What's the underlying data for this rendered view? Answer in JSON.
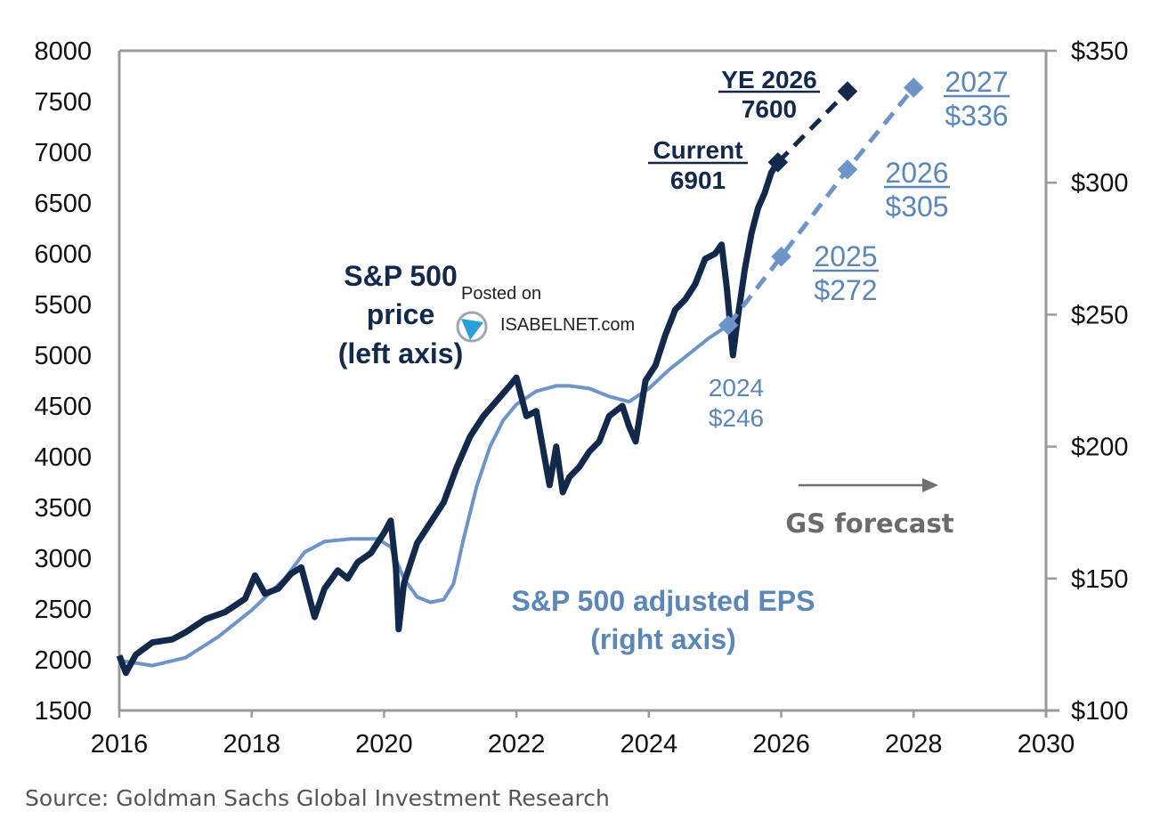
{
  "chart_data": {
    "type": "line",
    "title": "",
    "xlabel": "",
    "x_ticks": [
      "2016",
      "2018",
      "2020",
      "2022",
      "2024",
      "2026",
      "2028",
      "2030"
    ],
    "xlim": [
      2016,
      2030
    ],
    "left_axis": {
      "label": "S&P 500 price",
      "ylim": [
        1500,
        8000
      ],
      "ticks": [
        "8000",
        "7500",
        "7000",
        "6500",
        "6000",
        "5500",
        "5000",
        "4500",
        "4000",
        "3500",
        "3000",
        "2500",
        "2000",
        "1500"
      ]
    },
    "right_axis": {
      "label": "S&P 500 adjusted EPS",
      "ylim": [
        100,
        350
      ],
      "ticks": [
        "$350",
        "$300",
        "$250",
        "$200",
        "$150",
        "$100"
      ]
    },
    "grid": false,
    "series": [
      {
        "name": "S&P 500 price (left axis)",
        "axis": "left",
        "color": "#13294b",
        "x": [
          2016.0,
          2016.1,
          2016.25,
          2016.5,
          2016.8,
          2017.0,
          2017.3,
          2017.6,
          2017.9,
          2018.05,
          2018.2,
          2018.4,
          2018.6,
          2018.75,
          2018.95,
          2019.1,
          2019.3,
          2019.45,
          2019.6,
          2019.8,
          2020.0,
          2020.1,
          2020.18,
          2020.22,
          2020.3,
          2020.5,
          2020.7,
          2020.9,
          2021.1,
          2021.3,
          2021.5,
          2021.7,
          2021.9,
          2022.0,
          2022.15,
          2022.3,
          2022.45,
          2022.5,
          2022.6,
          2022.7,
          2022.8,
          2022.95,
          2023.1,
          2023.25,
          2023.4,
          2023.6,
          2023.7,
          2023.8,
          2023.95,
          2024.1,
          2024.25,
          2024.4,
          2024.55,
          2024.7,
          2024.85,
          2025.0,
          2025.1,
          2025.18,
          2025.27,
          2025.35,
          2025.45,
          2025.55,
          2025.65,
          2025.75,
          2025.85,
          2025.95
        ],
        "values": [
          2040,
          1870,
          2050,
          2170,
          2200,
          2270,
          2400,
          2470,
          2600,
          2830,
          2650,
          2700,
          2850,
          2910,
          2420,
          2700,
          2880,
          2800,
          2960,
          3050,
          3250,
          3370,
          2900,
          2300,
          2750,
          3150,
          3350,
          3550,
          3900,
          4200,
          4400,
          4550,
          4700,
          4780,
          4400,
          4450,
          3900,
          3720,
          4100,
          3650,
          3800,
          3900,
          4050,
          4150,
          4400,
          4500,
          4300,
          4150,
          4750,
          4900,
          5200,
          5450,
          5550,
          5700,
          5950,
          6000,
          6090,
          5650,
          5000,
          5400,
          5850,
          6200,
          6450,
          6600,
          6800,
          6901
        ]
      },
      {
        "name": "S&P 500 adjusted EPS (right axis)",
        "axis": "right",
        "color": "#6d93c7",
        "x": [
          2016.0,
          2016.5,
          2017.0,
          2017.5,
          2018.0,
          2018.5,
          2018.8,
          2019.1,
          2019.5,
          2019.9,
          2020.1,
          2020.3,
          2020.5,
          2020.7,
          2020.9,
          2021.05,
          2021.2,
          2021.4,
          2021.6,
          2021.8,
          2022.0,
          2022.3,
          2022.6,
          2022.8,
          2023.1,
          2023.4,
          2023.7,
          2024.0,
          2024.3,
          2024.6,
          2024.9,
          2025.2
        ],
        "values": [
          119,
          117,
          120,
          128,
          138,
          150,
          160,
          164,
          165,
          165,
          162,
          150,
          143,
          141,
          142,
          148,
          165,
          185,
          200,
          210,
          216,
          221,
          223,
          223,
          222,
          219,
          217,
          222,
          229,
          235,
          241,
          246
        ]
      }
    ],
    "forecast": {
      "price": {
        "color": "#13294b",
        "points": [
          {
            "x": 2025.95,
            "y": 6901
          },
          {
            "x": 2027.0,
            "y": 7600
          }
        ]
      },
      "eps": {
        "color": "#6d93c7",
        "points": [
          {
            "x": 2025.2,
            "y": 246
          },
          {
            "x": 2026.0,
            "y": 272
          },
          {
            "x": 2027.0,
            "y": 305
          },
          {
            "x": 2028.0,
            "y": 336
          }
        ]
      }
    },
    "annotations": {
      "ye2026": {
        "line1": "YE 2026",
        "line2": "7600"
      },
      "current": {
        "line1": "Current",
        "line2": "6901"
      },
      "eps2027": {
        "line1": "2027",
        "line2": "$336"
      },
      "eps2026": {
        "line1": "2026",
        "line2": "$305"
      },
      "eps2025": {
        "line1": "2025",
        "line2": "$272"
      },
      "eps2024": {
        "line1": "2024",
        "line2": "$246"
      },
      "price_label": {
        "line1": "S&P 500",
        "line2": "price",
        "line3": "(left axis)"
      },
      "eps_label": {
        "line1": "S&P 500 adjusted EPS",
        "line2": "(right axis)"
      },
      "forecast_label": "GS forecast"
    },
    "legend": "none"
  },
  "watermark": {
    "line1": "Posted on",
    "line2": "ISABELNET.com"
  },
  "source": "Source: Goldman Sachs Global Investment Research"
}
